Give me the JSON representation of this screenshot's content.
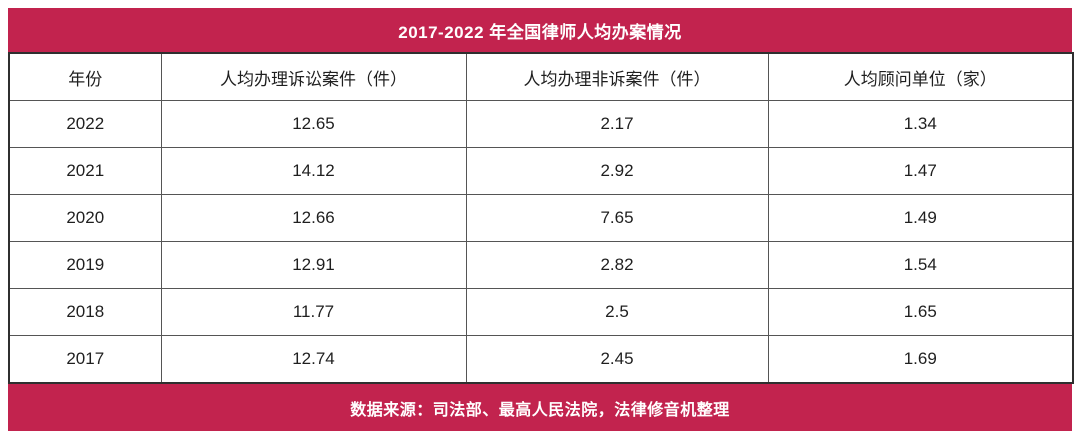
{
  "title": "2017-2022 年全国律师人均办案情况",
  "source": "数据来源：司法部、最高人民法院，法律修音机整理",
  "colors": {
    "accent": "#c2234e",
    "border_outer": "#2f2f2f",
    "border_inner": "#555555",
    "text": "#1f1f1f",
    "title_text": "#ffffff"
  },
  "chart_data": {
    "type": "table",
    "title": "2017-2022 年全国律师人均办案情况",
    "columns": [
      "年份",
      "人均办理诉讼案件（件）",
      "人均办理非诉案件（件）",
      "人均顾问单位（家）"
    ],
    "rows": [
      [
        "2022",
        "12.65",
        "2.17",
        "1.34"
      ],
      [
        "2021",
        "14.12",
        "2.92",
        "1.47"
      ],
      [
        "2020",
        "12.66",
        "7.65",
        "1.49"
      ],
      [
        "2019",
        "12.91",
        "2.82",
        "1.54"
      ],
      [
        "2018",
        "11.77",
        "2.5",
        "1.65"
      ],
      [
        "2017",
        "12.74",
        "2.45",
        "1.69"
      ]
    ],
    "source": "数据来源：司法部、最高人民法院，法律修音机整理"
  }
}
